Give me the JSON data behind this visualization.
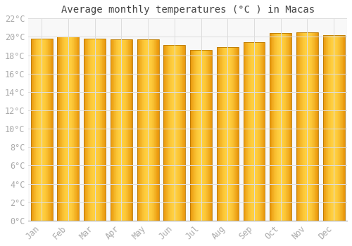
{
  "months": [
    "Jan",
    "Feb",
    "Mar",
    "Apr",
    "May",
    "Jun",
    "Jul",
    "Aug",
    "Sep",
    "Oct",
    "Nov",
    "Dec"
  ],
  "temperatures": [
    19.8,
    20.05,
    19.8,
    19.7,
    19.75,
    19.15,
    18.55,
    18.9,
    19.4,
    20.4,
    20.52,
    20.2
  ],
  "bar_color_left": "#E8950A",
  "bar_color_center": "#FFD040",
  "bar_color_right": "#E8950A",
  "bar_edge_color": "#B87800",
  "title": "Average monthly temperatures (°C ) in Macas",
  "ylim": [
    0,
    22
  ],
  "ytick_step": 2,
  "background_color": "#FFFFFF",
  "plot_bg_color": "#F8F8F8",
  "grid_color": "#DDDDDD",
  "title_fontsize": 10,
  "tick_fontsize": 8.5,
  "title_font": "monospace",
  "tick_font": "monospace",
  "tick_color": "#AAAAAA",
  "title_color": "#444444"
}
